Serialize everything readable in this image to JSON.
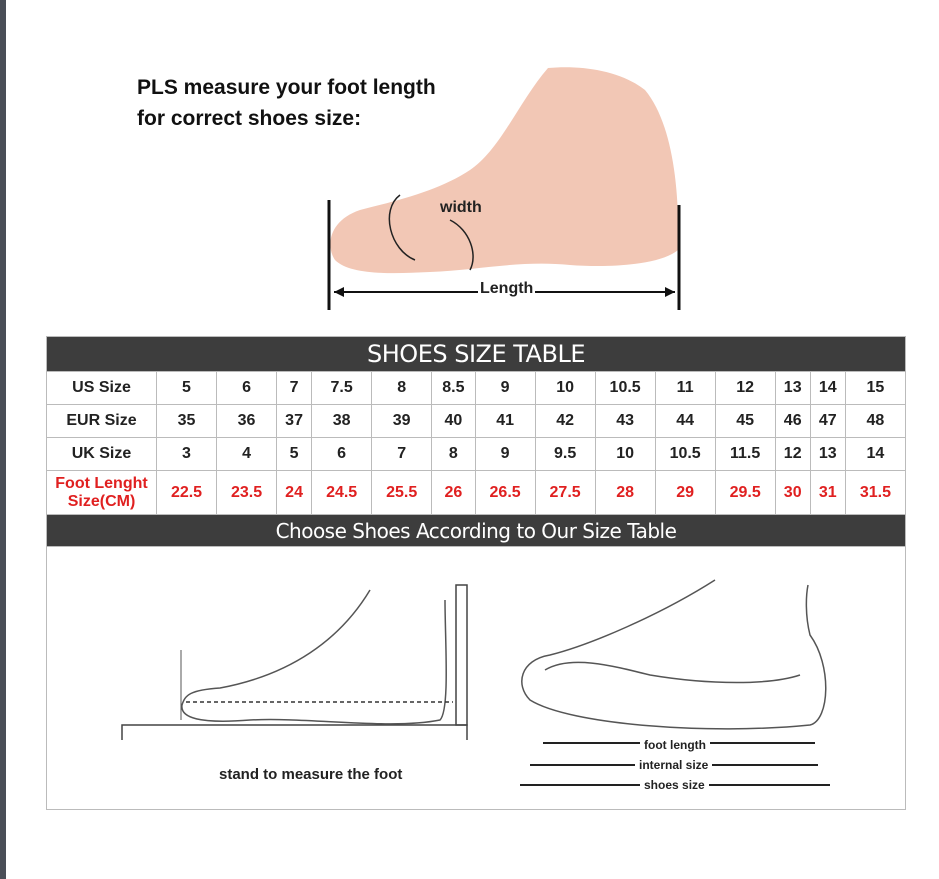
{
  "headline": {
    "line1": "PLS measure your foot length",
    "line2": "for correct shoes size:"
  },
  "foot_labels": {
    "width": "width",
    "length": "Length"
  },
  "table": {
    "title": "SHOES SIZE TABLE",
    "rows": [
      {
        "label": "US Size",
        "values": [
          "5",
          "6",
          "7",
          "7.5",
          "8",
          "8.5",
          "9",
          "10",
          "10.5",
          "11",
          "12",
          "13",
          "14",
          "15"
        ]
      },
      {
        "label": "EUR Size",
        "values": [
          "35",
          "36",
          "37",
          "38",
          "39",
          "40",
          "41",
          "42",
          "43",
          "44",
          "45",
          "46",
          "47",
          "48"
        ]
      },
      {
        "label": "UK Size",
        "values": [
          "3",
          "4",
          "5",
          "6",
          "7",
          "8",
          "9",
          "9.5",
          "10",
          "10.5",
          "11.5",
          "12",
          "13",
          "14"
        ]
      }
    ],
    "foot_row": {
      "label_line1": "Foot Lenght",
      "label_line2": "Size(CM)",
      "values": [
        "22.5",
        "23.5",
        "24",
        "24.5",
        "25.5",
        "26",
        "26.5",
        "27.5",
        "28",
        "29",
        "29.5",
        "30",
        "31",
        "31.5"
      ]
    },
    "subtitle": "Choose Shoes According to Our Size Table"
  },
  "diagram": {
    "stand_caption": "stand to measure the foot",
    "foot_length": "foot length",
    "internal_size": "internal size",
    "shoes_size": "shoes size"
  },
  "colors": {
    "bar": "#3d3d3d",
    "red": "#e02020",
    "skin": "#f2c7b5"
  }
}
